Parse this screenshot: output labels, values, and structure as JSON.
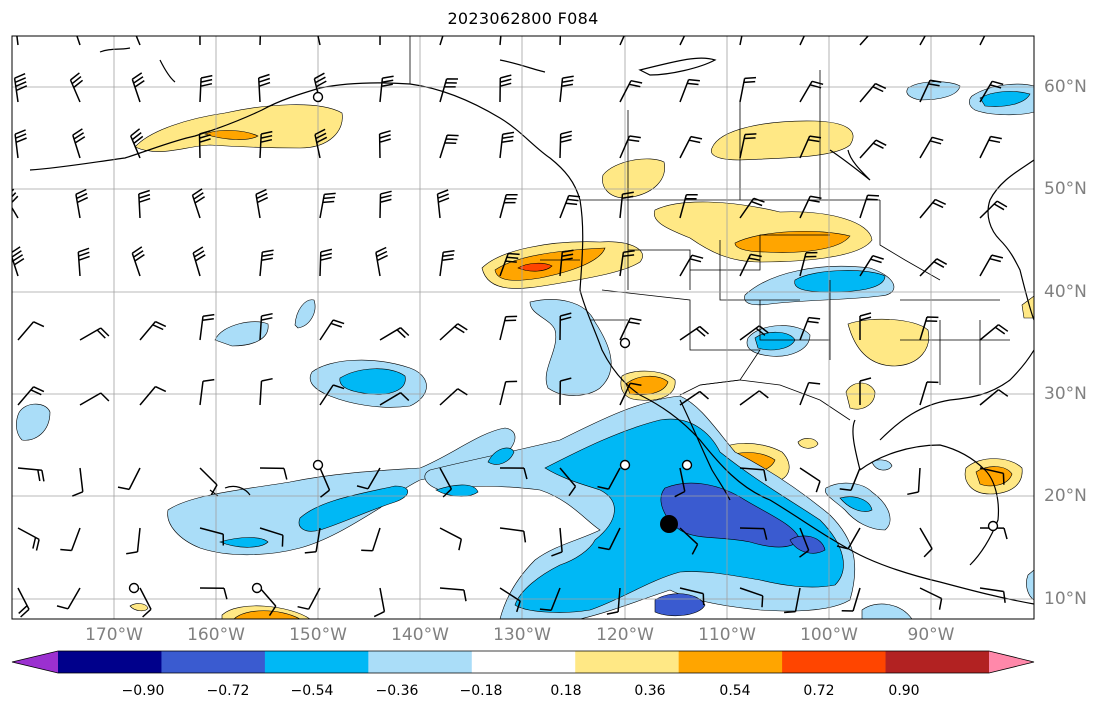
{
  "title": "2023062800 F084",
  "lon_labels": [
    "170°W",
    "160°W",
    "150°W",
    "140°W",
    "130°W",
    "120°W",
    "110°W",
    "100°W",
    "90°W"
  ],
  "lat_labels": [
    "60°N",
    "50°N",
    "40°N",
    "30°N",
    "20°N",
    "10°N"
  ],
  "colorbar": {
    "tick_labels": [
      "−0.90",
      "−0.72",
      "−0.54",
      "−0.36",
      "−0.18",
      "0.18",
      "0.36",
      "0.54",
      "0.72",
      "0.90"
    ],
    "colors": [
      "#9b30d0",
      "#00008b",
      "#3a5bd0",
      "#00b8f5",
      "#aaddf8",
      "#ffffff",
      "#ffe885",
      "#ffa500",
      "#ff4500",
      "#b22222",
      "#ff88aa"
    ],
    "extend": "both"
  },
  "palette": {
    "dark_blue": "#3a5bd0",
    "blue": "#00b8f5",
    "light_blue": "#aaddf8",
    "yellow": "#ffe885",
    "orange": "#ffa500",
    "red": "#ff4500"
  },
  "markers": [
    "storm-center-dot",
    "open-circle-marker"
  ]
}
